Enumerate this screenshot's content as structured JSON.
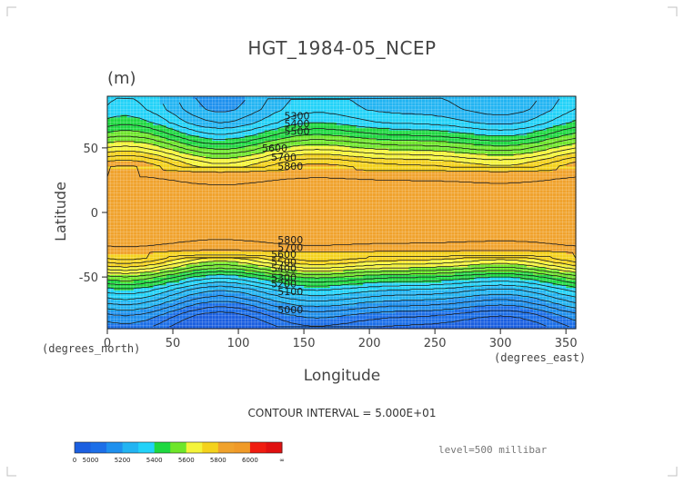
{
  "chart_data": {
    "type": "heatmap",
    "title": "HGT_1984-05_NCEP",
    "units_label": "(m)",
    "xlabel": "Longitude",
    "ylabel": "Latitude",
    "x_unit_label": "(degrees_east)",
    "y_unit_label": "(degrees_north)",
    "xlim": [
      0,
      357.5
    ],
    "ylim": [
      -90,
      90
    ],
    "x_ticks": [
      0,
      50,
      100,
      150,
      200,
      250,
      300,
      350
    ],
    "y_ticks": [
      -50,
      0,
      50
    ],
    "grid": true,
    "contour_interval_text": "CONTOUR INTERVAL = 5.000E+01",
    "level_text": "level=500 millibar",
    "colorbar": {
      "labels": [
        "0",
        "5000",
        "5200",
        "5400",
        "5600",
        "5800",
        "6000",
        "∞"
      ],
      "bins": [
        {
          "from": 0,
          "to": 5000,
          "color": "#1b5fe0"
        },
        {
          "from": 5000,
          "to": 5100,
          "color": "#1c6fe8"
        },
        {
          "from": 5100,
          "to": 5200,
          "color": "#1e90ee"
        },
        {
          "from": 5200,
          "to": 5300,
          "color": "#22b4f2"
        },
        {
          "from": 5300,
          "to": 5400,
          "color": "#22d2f8"
        },
        {
          "from": 5400,
          "to": 5500,
          "color": "#1ed840"
        },
        {
          "from": 5500,
          "to": 5600,
          "color": "#6ee62a"
        },
        {
          "from": 5600,
          "to": 5700,
          "color": "#f4f43a"
        },
        {
          "from": 5700,
          "to": 5800,
          "color": "#f4d21c"
        },
        {
          "from": 5800,
          "to": 5900,
          "color": "#f0a22c"
        },
        {
          "from": 5900,
          "to": 6000,
          "color": "#f09a28"
        },
        {
          "from": 6000,
          "to": 6100,
          "color": "#f01c10"
        },
        {
          "from": 6100,
          "to": 99999,
          "color": "#e01010"
        }
      ]
    },
    "field_lat_profile": [
      {
        "lat": -90,
        "value": 4980
      },
      {
        "lat": -80,
        "value": 5060
      },
      {
        "lat": -70,
        "value": 5180
      },
      {
        "lat": -60,
        "value": 5300
      },
      {
        "lat": -50,
        "value": 5460
      },
      {
        "lat": -42,
        "value": 5620
      },
      {
        "lat": -35,
        "value": 5740
      },
      {
        "lat": -28,
        "value": 5830
      },
      {
        "lat": -20,
        "value": 5870
      },
      {
        "lat": 0,
        "value": 5870
      },
      {
        "lat": 20,
        "value": 5870
      },
      {
        "lat": 30,
        "value": 5830
      },
      {
        "lat": 40,
        "value": 5720
      },
      {
        "lat": 50,
        "value": 5580
      },
      {
        "lat": 60,
        "value": 5450
      },
      {
        "lat": 70,
        "value": 5340
      },
      {
        "lat": 80,
        "value": 5280
      },
      {
        "lat": 90,
        "value": 5260
      }
    ],
    "contour_labels": [
      {
        "text": "5300",
        "lon": 135,
        "lat": 72
      },
      {
        "text": "5400",
        "lon": 135,
        "lat": 66
      },
      {
        "text": "5500",
        "lon": 135,
        "lat": 60
      },
      {
        "text": "5600",
        "lon": 118,
        "lat": 47
      },
      {
        "text": "5700",
        "lon": 125,
        "lat": 40
      },
      {
        "text": "5800",
        "lon": 130,
        "lat": 33
      },
      {
        "text": "5800",
        "lon": 130,
        "lat": -24
      },
      {
        "text": "5700",
        "lon": 130,
        "lat": -30
      },
      {
        "text": "5600",
        "lon": 125,
        "lat": -35
      },
      {
        "text": "5500",
        "lon": 125,
        "lat": -41
      },
      {
        "text": "5400",
        "lon": 125,
        "lat": -46
      },
      {
        "text": "5300",
        "lon": 125,
        "lat": -53
      },
      {
        "text": "5200",
        "lon": 125,
        "lat": -58
      },
      {
        "text": "5100",
        "lon": 130,
        "lat": -64
      },
      {
        "text": "5000",
        "lon": 130,
        "lat": -78
      }
    ]
  }
}
